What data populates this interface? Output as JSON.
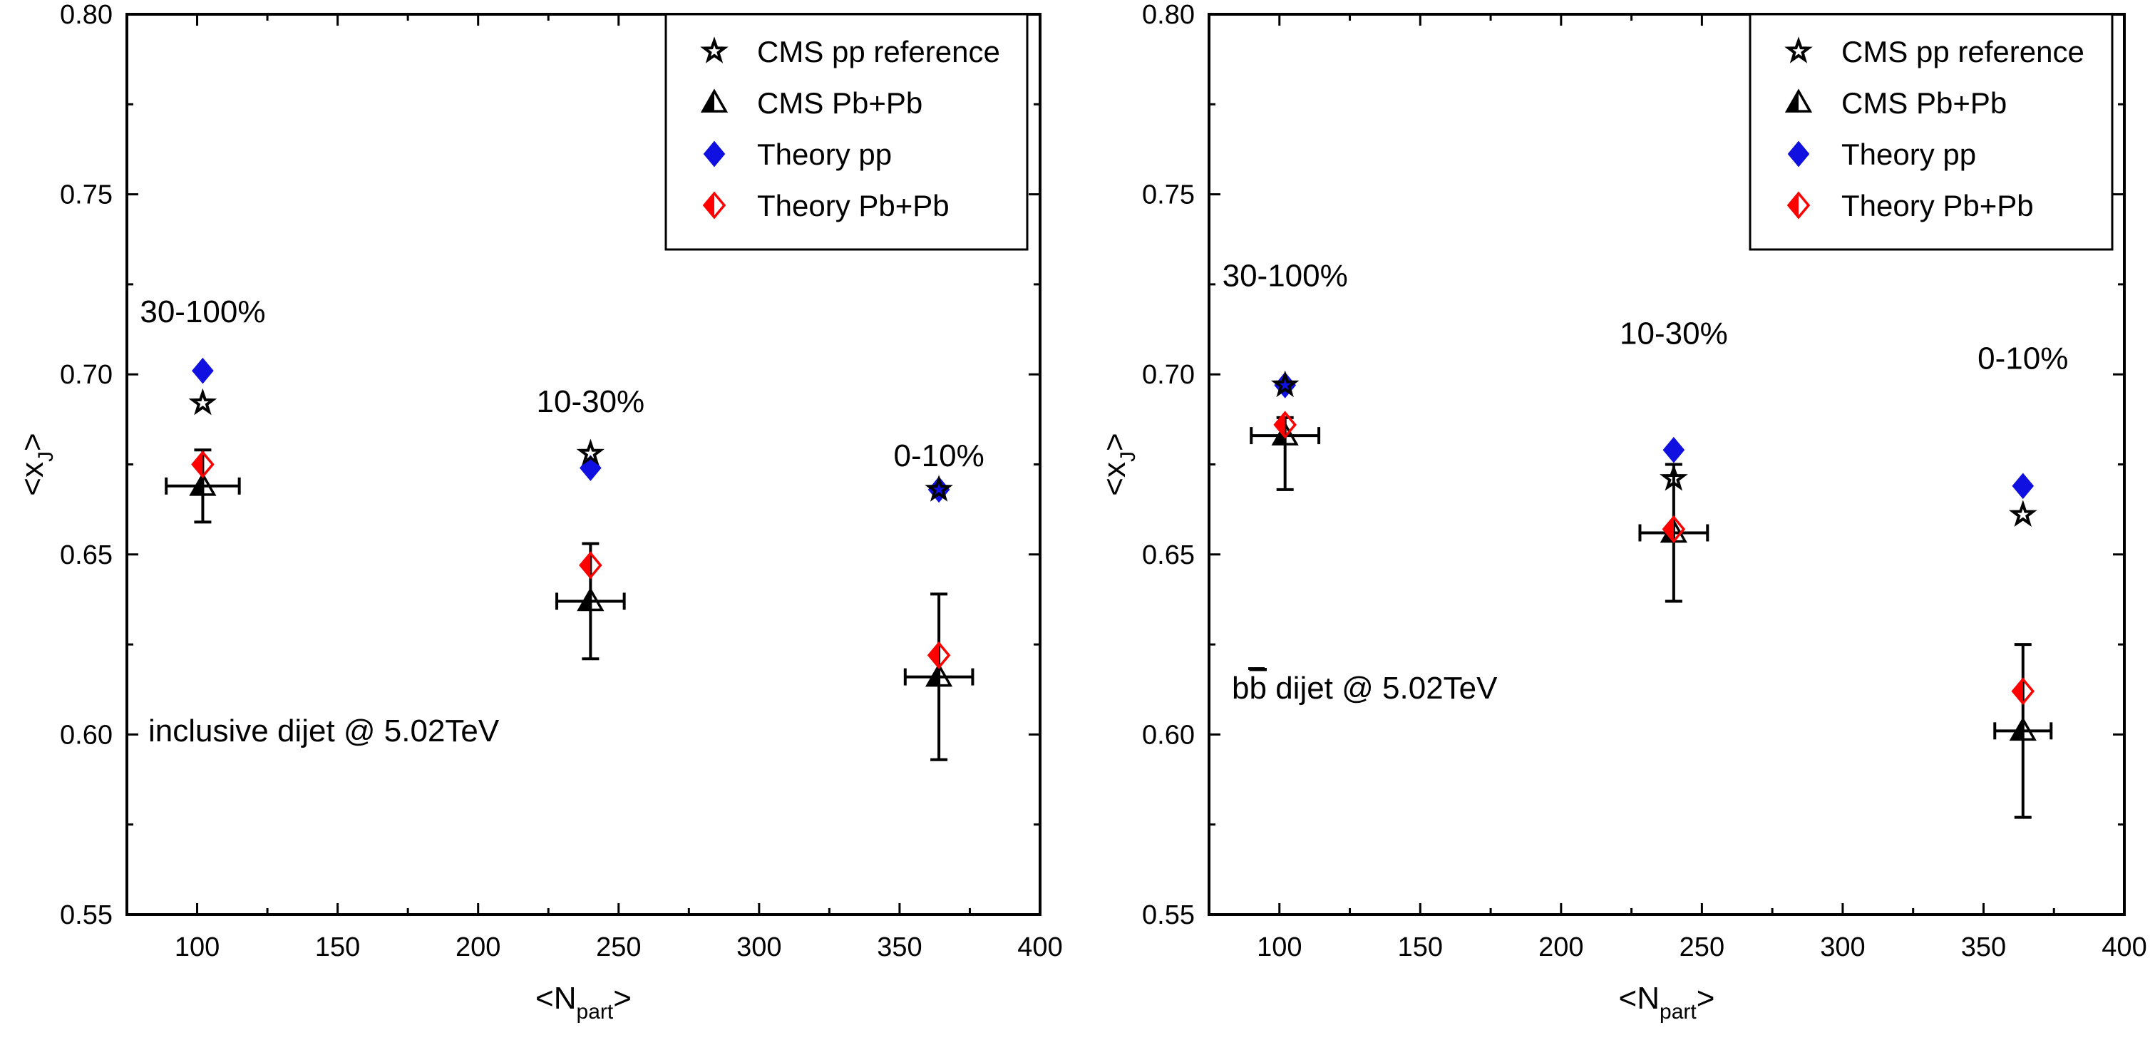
{
  "chart_data": [
    {
      "type": "scatter",
      "title": "",
      "xlabel": "N",
      "xlabel_sub": "part",
      "ylabel": "x",
      "ylabel_sub": "J",
      "xlim": [
        75,
        400
      ],
      "ylim": [
        0.55,
        0.8
      ],
      "xticks": [
        100,
        150,
        200,
        250,
        300,
        350,
        400
      ],
      "yticks": [
        0.55,
        0.6,
        0.65,
        0.7,
        0.75,
        0.8
      ],
      "grid": false,
      "legend_position": "top-right",
      "annotation": "inclusive dijet @ 5.02TeV",
      "centrality_labels": [
        {
          "text": "30-100%",
          "x": 102,
          "y": 0.7145
        },
        {
          "text": "10-30%",
          "x": 240,
          "y": 0.6895
        },
        {
          "text": "0-10%",
          "x": 364,
          "y": 0.6745
        }
      ],
      "series": [
        {
          "name": "CMS pp reference",
          "marker": "star",
          "color": "#000000",
          "x": [
            102,
            240,
            364
          ],
          "y": [
            0.692,
            0.678,
            0.668
          ]
        },
        {
          "name": "CMS Pb+Pb",
          "marker": "half-triangle",
          "color": "#000000",
          "x": [
            102,
            240,
            364
          ],
          "y": [
            0.669,
            0.637,
            0.616
          ],
          "yerr_low": [
            0.659,
            0.621,
            0.593
          ],
          "yerr_high": [
            0.679,
            0.653,
            0.639
          ],
          "xerr": [
            13,
            12,
            12
          ]
        },
        {
          "name": "Theory pp",
          "marker": "diamond",
          "color": "#1010e0",
          "x": [
            102,
            240,
            364
          ],
          "y": [
            0.701,
            0.674,
            0.668
          ]
        },
        {
          "name": "Theory Pb+Pb",
          "marker": "half-diamond",
          "color": "#ff0000",
          "x": [
            102,
            240,
            364
          ],
          "y": [
            0.675,
            0.647,
            0.622
          ]
        }
      ]
    },
    {
      "type": "scatter",
      "title": "",
      "xlabel": "N",
      "xlabel_sub": "part",
      "ylabel": "x",
      "ylabel_sub": "J",
      "xlim": [
        75,
        400
      ],
      "ylim": [
        0.55,
        0.8
      ],
      "xticks": [
        100,
        150,
        200,
        250,
        300,
        350,
        400
      ],
      "yticks": [
        0.55,
        0.6,
        0.65,
        0.7,
        0.75,
        0.8
      ],
      "grid": false,
      "legend_position": "top-right",
      "annotation_prefix": "b",
      "annotation_bar": "b",
      "annotation_rest": " dijet @ 5.02TeV",
      "centrality_labels": [
        {
          "text": "30-100%",
          "x": 102,
          "y": 0.7245
        },
        {
          "text": "10-30%",
          "x": 240,
          "y": 0.7085
        },
        {
          "text": "0-10%",
          "x": 364,
          "y": 0.7015
        }
      ],
      "series": [
        {
          "name": "CMS pp reference",
          "marker": "star",
          "color": "#000000",
          "x": [
            102,
            240,
            364
          ],
          "y": [
            0.697,
            0.671,
            0.661
          ]
        },
        {
          "name": "CMS Pb+Pb",
          "marker": "half-triangle",
          "color": "#000000",
          "x": [
            102,
            240,
            364
          ],
          "y": [
            0.683,
            0.656,
            0.601
          ],
          "yerr_low": [
            0.668,
            0.637,
            0.577
          ],
          "yerr_high": [
            0.688,
            0.675,
            0.625
          ],
          "xerr": [
            12,
            12,
            10
          ]
        },
        {
          "name": "Theory pp",
          "marker": "diamond",
          "color": "#1010e0",
          "x": [
            102,
            240,
            364
          ],
          "y": [
            0.697,
            0.679,
            0.669
          ]
        },
        {
          "name": "Theory Pb+Pb",
          "marker": "half-diamond",
          "color": "#ff0000",
          "x": [
            102,
            240,
            364
          ],
          "y": [
            0.686,
            0.657,
            0.612
          ]
        }
      ]
    }
  ]
}
